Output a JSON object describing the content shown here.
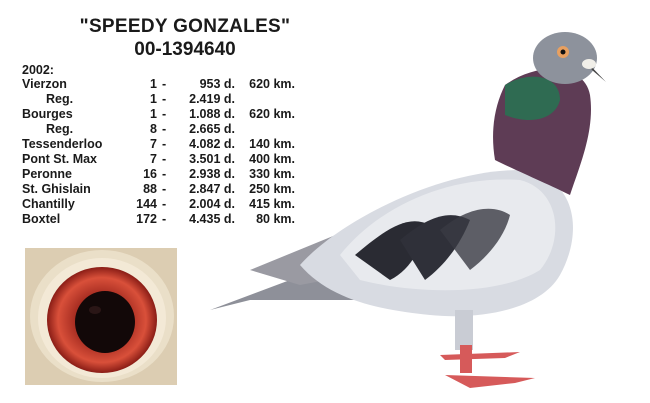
{
  "header": {
    "name": "\"SPEEDY GONZALES\"",
    "ring_number": "00-1394640"
  },
  "results": {
    "year": "2002:",
    "rows": [
      {
        "race": "Vierzon",
        "place": "1",
        "dash": "-",
        "birds": "953 d.",
        "distance": "620 km."
      },
      {
        "race": "Reg.",
        "place": "1",
        "dash": "-",
        "birds": "2.419 d.",
        "distance": ""
      },
      {
        "race": "Bourges",
        "place": "1",
        "dash": "-",
        "birds": "1.088 d.",
        "distance": "620 km."
      },
      {
        "race": "Reg.",
        "place": "8",
        "dash": "-",
        "birds": "2.665 d.",
        "distance": ""
      },
      {
        "race": "Tessenderloo",
        "place": "7",
        "dash": "-",
        "birds": "4.082 d.",
        "distance": "140 km."
      },
      {
        "race": "Pont St. Max",
        "place": "7",
        "dash": "-",
        "birds": "3.501 d.",
        "distance": "400 km."
      },
      {
        "race": "Peronne",
        "place": "16",
        "dash": "-",
        "birds": "2.938 d.",
        "distance": "330 km."
      },
      {
        "race": "St. Ghislain",
        "place": "88",
        "dash": "-",
        "birds": "2.847 d.",
        "distance": "250 km."
      },
      {
        "race": "Chantilly",
        "place": "144",
        "dash": "-",
        "birds": "2.004 d.",
        "distance": "415 km."
      },
      {
        "race": "Boxtel",
        "place": "172",
        "dash": "-",
        "birds": "4.435 d.",
        "distance": "80 km."
      }
    ]
  },
  "images": {
    "eye": "eye-closeup-photo",
    "pigeon": "pigeon-photo"
  }
}
